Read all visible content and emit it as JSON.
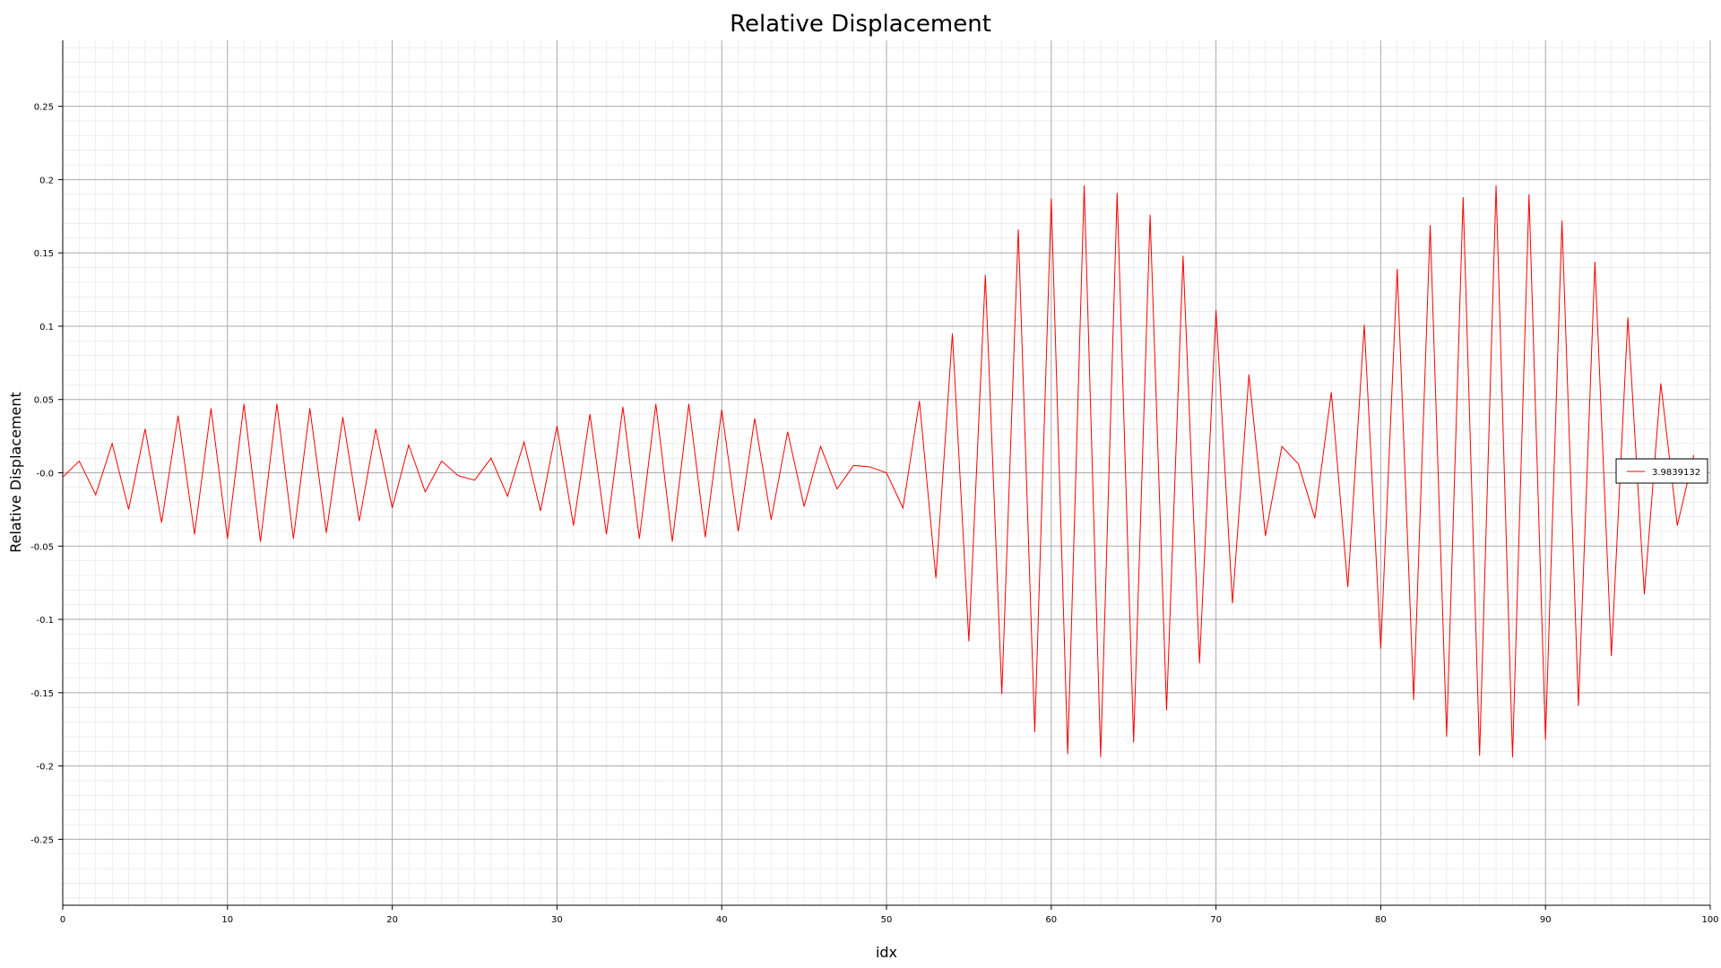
{
  "chart_data": {
    "type": "line",
    "title": "Relative Displacement",
    "xlabel": "idx",
    "ylabel": "Relative Displacement",
    "xlim": [
      0,
      100
    ],
    "ylim": [
      -0.295,
      0.295
    ],
    "x_ticks": [
      0,
      10,
      20,
      30,
      40,
      50,
      60,
      70,
      80,
      90,
      100
    ],
    "x_tick_labels": [
      "0",
      "10",
      "20",
      "30",
      "40",
      "50",
      "60",
      "70",
      "80",
      "90",
      "100"
    ],
    "y_ticks": [
      0.25,
      0.2,
      0.15,
      0.1,
      0.05,
      0,
      -0.05,
      -0.1,
      -0.15,
      -0.2,
      -0.25
    ],
    "y_tick_labels": [
      "0.25",
      "0.2",
      "0.15",
      "0.1",
      "0.05",
      "-0.0",
      "-0.05",
      "-0.1",
      "-0.15",
      "-0.2",
      "-0.25"
    ],
    "grid": true,
    "minor_grid": true,
    "legend_position": "right",
    "series": [
      {
        "name": "3.9839132",
        "color": "#ff0000",
        "x": [
          0,
          1,
          2,
          3,
          4,
          5,
          6,
          7,
          8,
          9,
          10,
          11,
          12,
          13,
          14,
          15,
          16,
          17,
          18,
          19,
          20,
          21,
          22,
          23,
          24,
          25,
          26,
          27,
          28,
          29,
          30,
          31,
          32,
          33,
          34,
          35,
          36,
          37,
          38,
          39,
          40,
          41,
          42,
          43,
          44,
          45,
          46,
          47,
          48,
          49,
          50,
          51,
          52,
          53,
          54,
          55,
          56,
          57,
          58,
          59,
          60,
          61,
          62,
          63,
          64,
          65,
          66,
          67,
          68,
          69,
          70,
          71,
          72,
          73,
          74,
          75,
          76,
          77,
          78,
          79,
          80,
          81,
          82,
          83,
          84,
          85,
          86,
          87,
          88,
          89,
          90,
          91,
          92,
          93,
          94,
          95,
          96,
          97,
          98,
          99
        ],
        "values": [
          -0.003,
          0.008,
          -0.015,
          0.02,
          -0.025,
          0.03,
          -0.034,
          0.039,
          -0.042,
          0.044,
          -0.045,
          0.047,
          -0.047,
          0.047,
          -0.045,
          0.044,
          -0.041,
          0.038,
          -0.033,
          0.03,
          -0.024,
          0.019,
          -0.013,
          0.008,
          -0.002,
          -0.005,
          0.01,
          -0.016,
          0.021,
          -0.026,
          0.032,
          -0.036,
          0.04,
          -0.042,
          0.045,
          -0.045,
          0.047,
          -0.047,
          0.047,
          -0.044,
          0.043,
          -0.04,
          0.037,
          -0.032,
          0.028,
          -0.023,
          0.018,
          -0.011,
          0.005,
          0.004,
          0,
          -0.024,
          0.049,
          -0.072,
          0.095,
          -0.115,
          0.135,
          -0.151,
          0.166,
          -0.177,
          0.187,
          -0.192,
          0.196,
          -0.194,
          0.191,
          -0.184,
          0.176,
          -0.162,
          0.148,
          -0.13,
          0.111,
          -0.089,
          0.067,
          -0.043,
          0.018,
          0.006,
          -0.031,
          0.055,
          -0.078,
          0.101,
          -0.12,
          0.139,
          -0.155,
          0.169,
          -0.18,
          0.188,
          -0.193,
          0.196,
          -0.194,
          0.19,
          -0.182,
          0.172,
          -0.159,
          0.144,
          -0.125,
          0.106,
          -0.083,
          0.061,
          -0.036,
          0.012
        ]
      }
    ]
  }
}
